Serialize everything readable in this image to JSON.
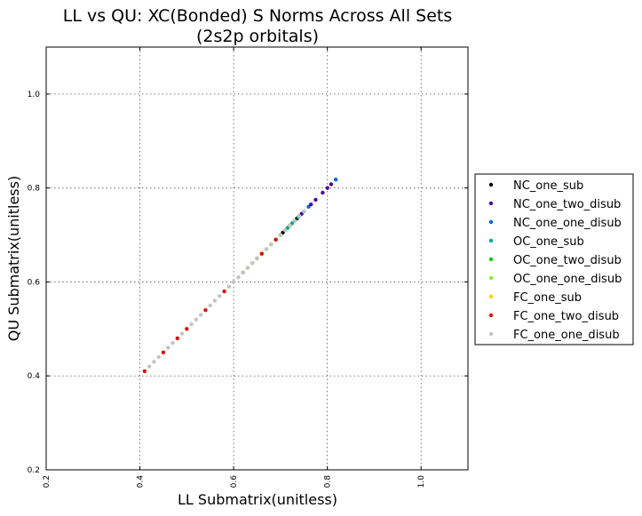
{
  "chart_data": {
    "type": "scatter",
    "title_line1": "LL vs QU: XC(Bonded) S Norms Across All Sets",
    "title_line2": "(2s2p orbitals)",
    "xlabel": "LL Submatrix(unitless)",
    "ylabel": "QU Submatrix(unitless)",
    "xlim": [
      0.2,
      1.1
    ],
    "ylim": [
      0.2,
      1.1
    ],
    "x_ticks": [
      "0.2",
      "0.4",
      "0.6",
      "0.8",
      "1.0"
    ],
    "y_ticks": [
      "0.2",
      "0.4",
      "0.6",
      "0.8",
      "1.0"
    ],
    "grid": true,
    "legend_position": "outside-right",
    "series": [
      {
        "name": "NC_one_sub",
        "color": "#000000",
        "points": [
          [
            0.705,
            0.705
          ],
          [
            0.72,
            0.72
          ],
          [
            0.735,
            0.735
          ]
        ]
      },
      {
        "name": "NC_one_two_disub",
        "color": "#4b0a9e",
        "points": [
          [
            0.745,
            0.745
          ],
          [
            0.765,
            0.765
          ],
          [
            0.775,
            0.775
          ],
          [
            0.79,
            0.79
          ],
          [
            0.8,
            0.8
          ],
          [
            0.808,
            0.808
          ]
        ]
      },
      {
        "name": "NC_one_one_disub",
        "color": "#0066dd",
        "points": [
          [
            0.7,
            0.7
          ],
          [
            0.71,
            0.71
          ],
          [
            0.72,
            0.72
          ],
          [
            0.73,
            0.73
          ],
          [
            0.74,
            0.74
          ],
          [
            0.75,
            0.75
          ],
          [
            0.76,
            0.76
          ],
          [
            0.818,
            0.818
          ]
        ]
      },
      {
        "name": "OC_one_sub",
        "color": "#00a39c",
        "points": [
          [
            0.715,
            0.715
          ],
          [
            0.725,
            0.725
          ],
          [
            0.738,
            0.738
          ]
        ]
      },
      {
        "name": "OC_one_two_disub",
        "color": "#00cc00",
        "points": [
          [
            0.66,
            0.66
          ],
          [
            0.68,
            0.68
          ],
          [
            0.69,
            0.69
          ],
          [
            0.7,
            0.7
          ],
          [
            0.71,
            0.71
          ],
          [
            0.72,
            0.72
          ],
          [
            0.73,
            0.73
          ]
        ]
      },
      {
        "name": "OC_one_one_disub",
        "color": "#88ee22",
        "points": [
          [
            0.63,
            0.63
          ],
          [
            0.64,
            0.64
          ],
          [
            0.65,
            0.65
          ],
          [
            0.66,
            0.66
          ],
          [
            0.67,
            0.67
          ],
          [
            0.68,
            0.68
          ],
          [
            0.69,
            0.69
          ],
          [
            0.7,
            0.7
          ],
          [
            0.71,
            0.71
          ],
          [
            0.72,
            0.72
          ],
          [
            0.73,
            0.73
          ]
        ]
      },
      {
        "name": "FC_one_sub",
        "color": "#ffcc00",
        "points": [
          [
            0.64,
            0.64
          ],
          [
            0.66,
            0.66
          ],
          [
            0.68,
            0.68
          ]
        ]
      },
      {
        "name": "FC_one_two_disub",
        "color": "#dd1100",
        "points": [
          [
            0.41,
            0.41
          ],
          [
            0.45,
            0.45
          ],
          [
            0.48,
            0.48
          ],
          [
            0.5,
            0.5
          ],
          [
            0.54,
            0.54
          ],
          [
            0.58,
            0.58
          ],
          [
            0.62,
            0.62
          ],
          [
            0.65,
            0.65
          ],
          [
            0.66,
            0.66
          ],
          [
            0.69,
            0.69
          ]
        ]
      },
      {
        "name": "FC_one_one_disub",
        "color": "#c4c4c4",
        "points": [
          [
            0.42,
            0.42
          ],
          [
            0.43,
            0.43
          ],
          [
            0.44,
            0.44
          ],
          [
            0.46,
            0.46
          ],
          [
            0.47,
            0.47
          ],
          [
            0.49,
            0.49
          ],
          [
            0.51,
            0.51
          ],
          [
            0.52,
            0.52
          ],
          [
            0.53,
            0.53
          ],
          [
            0.55,
            0.55
          ],
          [
            0.56,
            0.56
          ],
          [
            0.57,
            0.57
          ],
          [
            0.59,
            0.59
          ],
          [
            0.6,
            0.6
          ],
          [
            0.61,
            0.61
          ],
          [
            0.62,
            0.62
          ],
          [
            0.63,
            0.63
          ],
          [
            0.64,
            0.64
          ],
          [
            0.65,
            0.65
          ],
          [
            0.67,
            0.67
          ],
          [
            0.68,
            0.68
          ],
          [
            0.7,
            0.7
          ],
          [
            0.71,
            0.71
          ],
          [
            0.72,
            0.72
          ],
          [
            0.73,
            0.73
          ],
          [
            0.74,
            0.74
          ],
          [
            0.75,
            0.75
          ]
        ]
      }
    ]
  }
}
